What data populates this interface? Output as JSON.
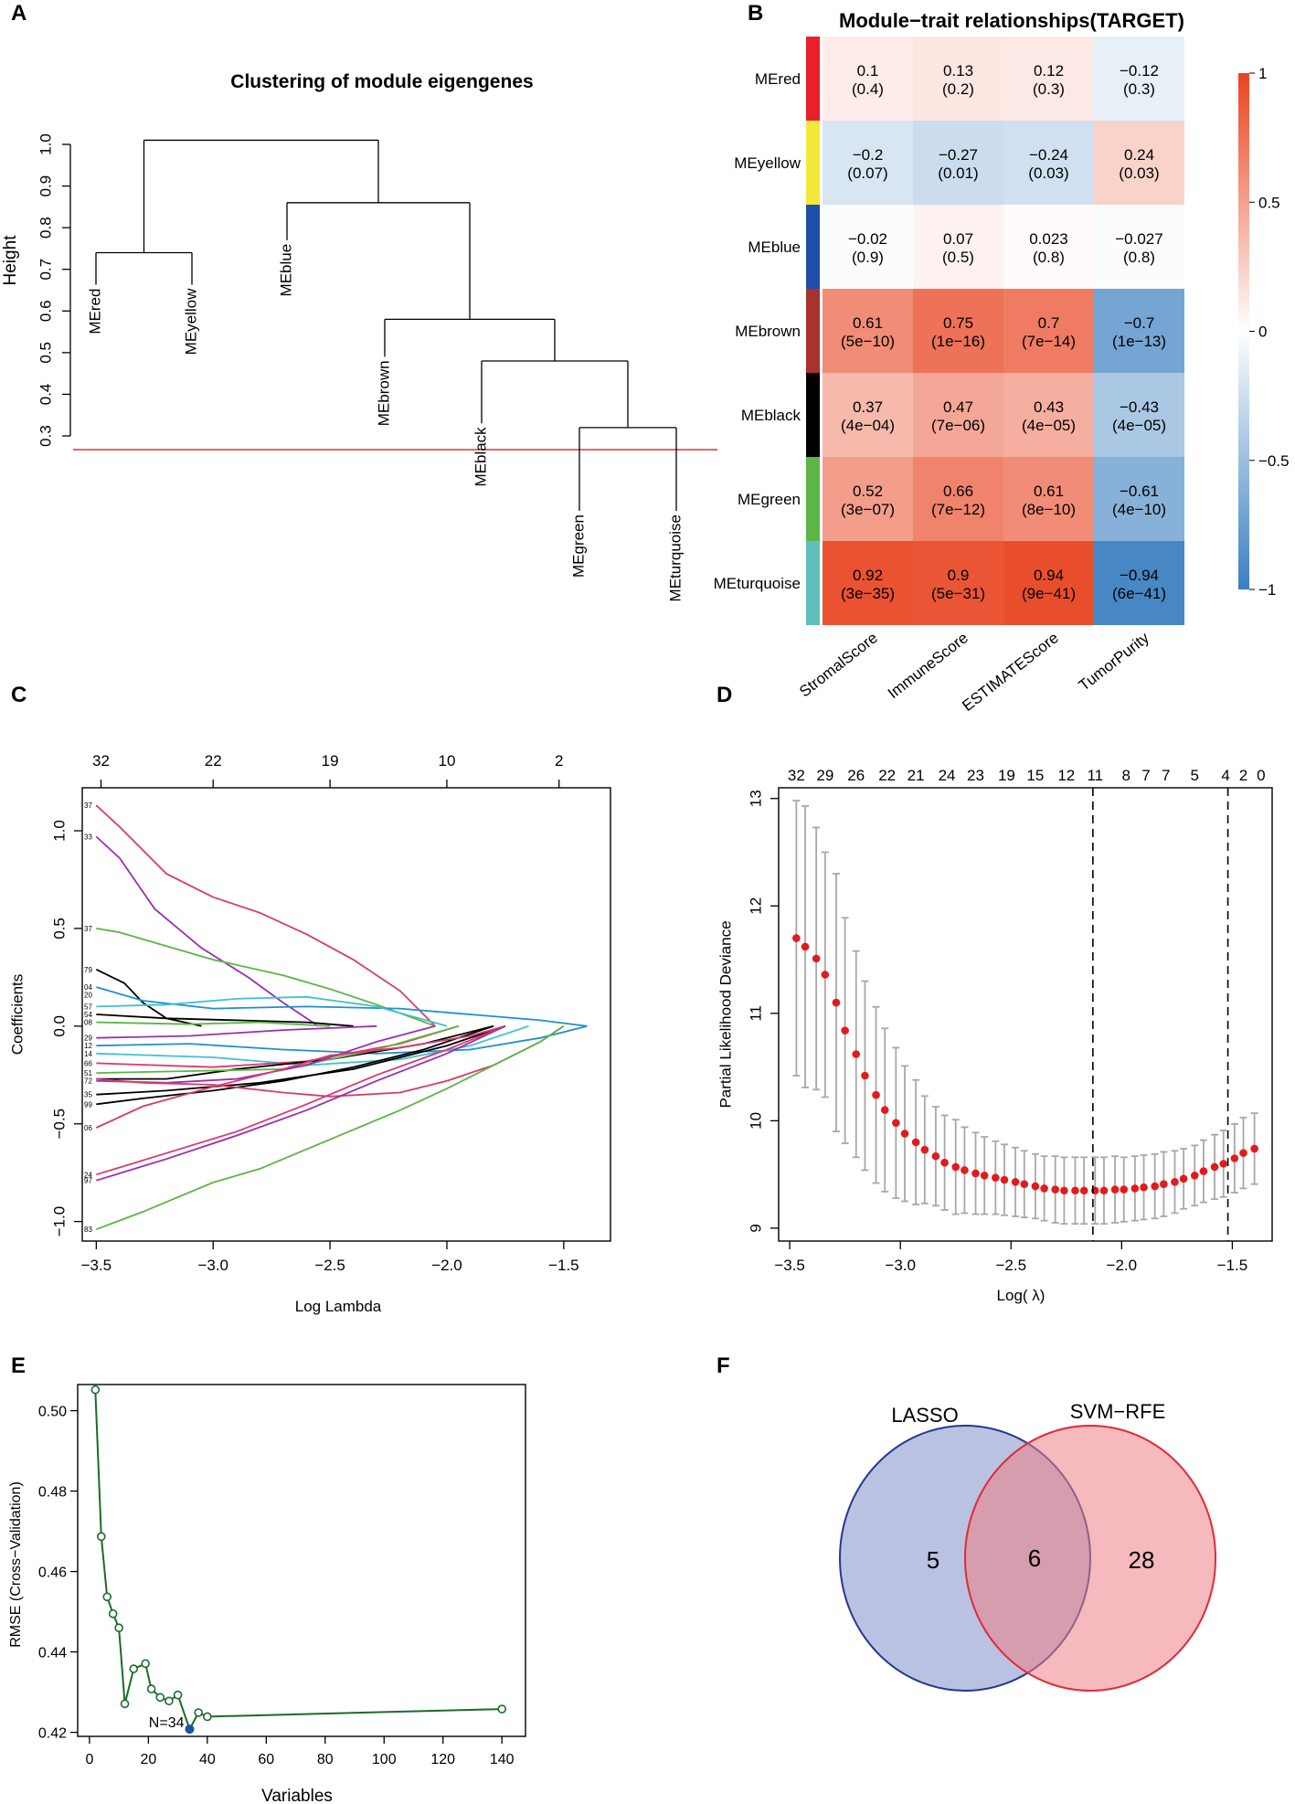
{
  "colors": {
    "axis": "#000000",
    "cutline": "#e0303a",
    "lasso_points": "#e31a1c",
    "error_bars": "#a8a8a8",
    "rfe_line": "#1b6b2a",
    "rfe_best": "#1f4fa8",
    "rfe_best_label": "#e0407a",
    "venn_lasso_fill": "#7f8fc8",
    "venn_lasso_stroke": "#26378f",
    "venn_svm_fill": "#ef7f86",
    "venn_svm_stroke": "#e02a35",
    "heat_pos": "#e8431f",
    "heat_neutral": "#ffffff",
    "heat_neg": "#3a7fc0"
  },
  "panel_labels": [
    "A",
    "B",
    "C",
    "D",
    "E",
    "F"
  ],
  "chart_data": [
    {
      "id": "A",
      "type": "dendrogram",
      "title": "Clustering of module eigengenes",
      "ylabel": "Height",
      "ylim": [
        0.27,
        1.05
      ],
      "yticks": [
        "0.3",
        "0.4",
        "0.5",
        "0.6",
        "0.7",
        "0.8",
        "0.9",
        "1.0"
      ],
      "ytick_values": [
        0.3,
        0.4,
        0.5,
        0.6,
        0.7,
        0.8,
        0.9,
        1.0
      ],
      "cut_height": 0.25,
      "leaves": [
        "MEred",
        "MEyellow",
        "MEblue",
        "MEbrown",
        "MEblack",
        "MEgreen",
        "MEturquoise"
      ],
      "merges": [
        {
          "left": "MEred",
          "right": "MEyellow",
          "height": 0.74
        },
        {
          "left": "MEgreen",
          "right": "MEturquoise",
          "height": 0.32
        },
        {
          "left": "MEblack",
          "right": "(MEgreen,MEturquoise)",
          "height": 0.48
        },
        {
          "left": "MEbrown",
          "right": "(MEblack,MEgreen,MEturquoise)",
          "height": 0.58
        },
        {
          "left": "MEblue",
          "right": "(brown cluster)",
          "height": 0.86
        },
        {
          "left": "(MEred,MEyellow)",
          "right": "(blue cluster)",
          "height": 1.01
        }
      ]
    },
    {
      "id": "B",
      "type": "heatmap",
      "title": "Module−trait relationships(TARGET)",
      "rows": [
        "MEred",
        "MEyellow",
        "MEblue",
        "MEbrown",
        "MEblack",
        "MEgreen",
        "MEturquoise"
      ],
      "row_colors": [
        "#e8202a",
        "#f2e93a",
        "#1f4fa8",
        "#a8322d",
        "#000000",
        "#5cb545",
        "#5fc0bd"
      ],
      "columns": [
        "StromalScore",
        "ImmuneScore",
        "ESTIMATEScore",
        "TumorPurity"
      ],
      "values": [
        [
          0.1,
          0.13,
          0.12,
          -0.12
        ],
        [
          -0.2,
          -0.27,
          -0.24,
          0.24
        ],
        [
          -0.02,
          0.07,
          0.023,
          -0.027
        ],
        [
          0.61,
          0.75,
          0.7,
          -0.7
        ],
        [
          0.37,
          0.47,
          0.43,
          -0.43
        ],
        [
          0.52,
          0.66,
          0.61,
          -0.61
        ],
        [
          0.92,
          0.9,
          0.94,
          -0.94
        ]
      ],
      "value_labels": [
        [
          "0.1",
          "0.13",
          "0.12",
          "−0.12"
        ],
        [
          "−0.2",
          "−0.27",
          "−0.24",
          "0.24"
        ],
        [
          "−0.02",
          "0.07",
          "0.023",
          "−0.027"
        ],
        [
          "0.61",
          "0.75",
          "0.7",
          "−0.7"
        ],
        [
          "0.37",
          "0.47",
          "0.43",
          "−0.43"
        ],
        [
          "0.52",
          "0.66",
          "0.61",
          "−0.61"
        ],
        [
          "0.92",
          "0.9",
          "0.94",
          "−0.94"
        ]
      ],
      "pvalue_labels": [
        [
          "(0.4)",
          "(0.2)",
          "(0.3)",
          "(0.3)"
        ],
        [
          "(0.07)",
          "(0.01)",
          "(0.03)",
          "(0.03)"
        ],
        [
          "(0.9)",
          "(0.5)",
          "(0.8)",
          "(0.8)"
        ],
        [
          "(5e−10)",
          "(1e−16)",
          "(7e−14)",
          "(1e−13)"
        ],
        [
          "(4e−04)",
          "(7e−06)",
          "(4e−05)",
          "(4e−05)"
        ],
        [
          "(3e−07)",
          "(7e−12)",
          "(8e−10)",
          "(4e−10)"
        ],
        [
          "(3e−35)",
          "(5e−31)",
          "(9e−41)",
          "(6e−41)"
        ]
      ],
      "colorbar_ticks": [
        "1",
        "0.5",
        "0",
        "−0.5",
        "−1"
      ],
      "colorbar_values": [
        1,
        0.5,
        0,
        -0.5,
        -1
      ],
      "zlim": [
        -1,
        1
      ]
    },
    {
      "id": "C",
      "type": "line",
      "xlabel": "Log Lambda",
      "ylabel": "Coefficients",
      "xlim": [
        -3.56,
        -1.3
      ],
      "ylim": [
        -1.1,
        1.22
      ],
      "xticks": [
        "−3.5",
        "−3.0",
        "−2.5",
        "−2.0",
        "−1.5"
      ],
      "xtick_values": [
        -3.5,
        -3.0,
        -2.5,
        -2.0,
        -1.5
      ],
      "yticks": [
        "−1.0",
        "−0.5",
        "0.0",
        "0.5",
        "1.0"
      ],
      "ytick_values": [
        -1.0,
        -0.5,
        0.0,
        0.5,
        1.0
      ],
      "top_ticks": [
        "32",
        "22",
        "19",
        "10",
        "2"
      ],
      "top_tick_values": [
        -3.48,
        -3.0,
        -2.5,
        -2.0,
        -1.52
      ],
      "left_labels": [
        {
          "text": "37",
          "y": 1.13
        },
        {
          "text": "33",
          "y": 0.97
        },
        {
          "text": "37",
          "y": 0.5
        },
        {
          "text": "79",
          "y": 0.29
        },
        {
          "text": "04",
          "y": 0.2
        },
        {
          "text": "20",
          "y": 0.16
        },
        {
          "text": "57",
          "y": 0.1
        },
        {
          "text": "54",
          "y": 0.06
        },
        {
          "text": "08",
          "y": 0.02
        },
        {
          "text": "29",
          "y": -0.06
        },
        {
          "text": "12",
          "y": -0.1
        },
        {
          "text": "14",
          "y": -0.14
        },
        {
          "text": "66",
          "y": -0.19
        },
        {
          "text": "51",
          "y": -0.24
        },
        {
          "text": "72",
          "y": -0.28
        },
        {
          "text": "35",
          "y": -0.35
        },
        {
          "text": "99",
          "y": -0.4
        },
        {
          "text": "06",
          "y": -0.52
        },
        {
          "text": "24",
          "y": -0.76
        },
        {
          "text": "97",
          "y": -0.79
        },
        {
          "text": "83",
          "y": -1.04
        }
      ],
      "series": [
        {
          "color": "#d93a6a",
          "x": [
            -3.5,
            -3.4,
            -3.2,
            -3.0,
            -2.8,
            -2.6,
            -2.4,
            -2.2,
            -2.05
          ],
          "y": [
            1.13,
            1.02,
            0.78,
            0.66,
            0.58,
            0.47,
            0.34,
            0.18,
            0.0
          ]
        },
        {
          "color": "#9b2fb0",
          "x": [
            -3.5,
            -3.4,
            -3.25,
            -3.05,
            -2.85,
            -2.7,
            -2.55
          ],
          "y": [
            0.97,
            0.86,
            0.6,
            0.4,
            0.25,
            0.12,
            0.0
          ]
        },
        {
          "color": "#5cb545",
          "x": [
            -3.5,
            -3.4,
            -3.2,
            -3.0,
            -2.7,
            -2.5,
            -2.3,
            -2.05
          ],
          "y": [
            0.5,
            0.48,
            0.41,
            0.34,
            0.26,
            0.19,
            0.11,
            0.0
          ]
        },
        {
          "color": "#000000",
          "x": [
            -3.5,
            -3.38,
            -3.3,
            -3.2,
            -3.05
          ],
          "y": [
            0.29,
            0.22,
            0.12,
            0.04,
            0.0
          ]
        },
        {
          "color": "#1f8fcf",
          "x": [
            -3.5,
            -3.3,
            -3.0,
            -2.6,
            -2.2,
            -1.9,
            -1.6,
            -1.4
          ],
          "y": [
            0.2,
            0.13,
            0.09,
            0.1,
            0.09,
            0.06,
            0.03,
            0.0
          ]
        },
        {
          "color": "#3fc1d0",
          "x": [
            -3.5,
            -3.2,
            -2.9,
            -2.6,
            -2.3,
            -2.0
          ],
          "y": [
            0.1,
            0.11,
            0.14,
            0.15,
            0.1,
            0.0
          ]
        },
        {
          "color": "#000000",
          "x": [
            -3.5,
            -3.2,
            -2.9,
            -2.6,
            -2.4
          ],
          "y": [
            0.06,
            0.04,
            0.03,
            0.02,
            0.0
          ]
        },
        {
          "color": "#5cb545",
          "x": [
            -3.5,
            -3.1,
            -2.8,
            -2.5
          ],
          "y": [
            0.02,
            0.01,
            0.02,
            0.0
          ]
        },
        {
          "color": "#9b2fb0",
          "x": [
            -3.5,
            -3.1,
            -2.7,
            -2.3
          ],
          "y": [
            -0.06,
            -0.05,
            -0.02,
            0.0
          ]
        },
        {
          "color": "#1f8fcf",
          "x": [
            -3.5,
            -3.1,
            -2.7,
            -2.3,
            -1.9,
            -1.6,
            -1.4
          ],
          "y": [
            -0.1,
            -0.09,
            -0.12,
            -0.14,
            -0.12,
            -0.06,
            0.0
          ]
        },
        {
          "color": "#3fc1d0",
          "x": [
            -3.5,
            -3.0,
            -2.6,
            -2.2,
            -1.9,
            -1.65
          ],
          "y": [
            -0.14,
            -0.16,
            -0.2,
            -0.17,
            -0.1,
            0.0
          ]
        },
        {
          "color": "#d93a6a",
          "x": [
            -3.5,
            -3.0,
            -2.6,
            -2.2,
            -1.95
          ],
          "y": [
            -0.19,
            -0.21,
            -0.18,
            -0.09,
            0.0
          ]
        },
        {
          "color": "#000000",
          "x": [
            -3.5,
            -3.2,
            -2.9,
            -2.5,
            -2.1,
            -1.8
          ],
          "y": [
            -0.27,
            -0.27,
            -0.22,
            -0.17,
            -0.09,
            0.0
          ]
        },
        {
          "color": "#5cb545",
          "x": [
            -3.5,
            -3.1,
            -2.7,
            -2.3,
            -1.95
          ],
          "y": [
            -0.24,
            -0.23,
            -0.22,
            -0.12,
            0.0
          ]
        },
        {
          "color": "#9b2fb0",
          "x": [
            -3.5,
            -3.2,
            -2.9,
            -2.6,
            -2.3,
            -2.05
          ],
          "y": [
            -0.28,
            -0.29,
            -0.27,
            -0.2,
            -0.08,
            0.0
          ]
        },
        {
          "color": "#000000",
          "x": [
            -3.5,
            -3.2,
            -2.8,
            -2.4,
            -2.0,
            -1.75
          ],
          "y": [
            -0.35,
            -0.33,
            -0.29,
            -0.22,
            -0.1,
            0.0
          ]
        },
        {
          "color": "#000000",
          "x": [
            -3.5,
            -3.3,
            -3.0,
            -2.7,
            -2.4,
            -2.1,
            -1.8
          ],
          "y": [
            -0.4,
            -0.37,
            -0.33,
            -0.28,
            -0.21,
            -0.12,
            0.0
          ]
        },
        {
          "color": "#d93a6a",
          "x": [
            -3.5,
            -3.3,
            -3.0,
            -2.7,
            -2.5,
            -2.2,
            -1.9,
            -1.75
          ],
          "y": [
            -0.52,
            -0.41,
            -0.31,
            -0.22,
            -0.15,
            -0.11,
            -0.05,
            0.0
          ]
        },
        {
          "color": "#d93a6a",
          "x": [
            -3.5,
            -3.3,
            -3.0,
            -2.7,
            -2.5,
            -2.2,
            -2.0,
            -1.8,
            -1.6,
            -1.5
          ],
          "y": [
            -0.27,
            -0.29,
            -0.3,
            -0.34,
            -0.36,
            -0.34,
            -0.28,
            -0.2,
            -0.08,
            0.0
          ]
        },
        {
          "color": "#d93a6a",
          "x": [
            -3.5,
            -3.2,
            -2.9,
            -2.6,
            -2.3,
            -2.0,
            -1.75
          ],
          "y": [
            -0.76,
            -0.65,
            -0.54,
            -0.4,
            -0.25,
            -0.12,
            0.0
          ]
        },
        {
          "color": "#9b2fb0",
          "x": [
            -3.5,
            -3.2,
            -2.9,
            -2.6,
            -2.3,
            -2.0,
            -1.75
          ],
          "y": [
            -0.79,
            -0.68,
            -0.56,
            -0.43,
            -0.28,
            -0.14,
            0.0
          ]
        },
        {
          "color": "#5cb545",
          "x": [
            -3.5,
            -3.3,
            -3.0,
            -2.8,
            -2.5,
            -2.2,
            -2.0,
            -1.8,
            -1.6,
            -1.5
          ],
          "y": [
            -1.04,
            -0.95,
            -0.8,
            -0.73,
            -0.58,
            -0.43,
            -0.32,
            -0.2,
            -0.08,
            0.0
          ]
        }
      ]
    },
    {
      "id": "D",
      "type": "scatter",
      "xlabel": "Log( λ)",
      "ylabel": "Partial Likelihood Deviance",
      "xlim": [
        -3.55,
        -1.32
      ],
      "ylim": [
        8.88,
        13.1
      ],
      "xticks": [
        "−3.5",
        "−3.0",
        "−2.5",
        "−2.0",
        "−1.5"
      ],
      "xtick_values": [
        -3.5,
        -3.0,
        -2.5,
        -2.0,
        -1.5
      ],
      "yticks": [
        "9",
        "10",
        "11",
        "12",
        "13"
      ],
      "ytick_values": [
        9,
        10,
        11,
        12,
        13
      ],
      "top_ticks": [
        "32",
        "29",
        "26",
        "22",
        "21",
        "24",
        "23",
        "19",
        "15",
        "12",
        "11",
        "8",
        "7",
        "7",
        "5",
        "4",
        "2",
        "0"
      ],
      "top_tick_values": [
        -3.47,
        -3.34,
        -3.2,
        -3.06,
        -2.93,
        -2.79,
        -2.66,
        -2.52,
        -2.39,
        -2.25,
        -2.12,
        -1.98,
        -1.89,
        -1.8,
        -1.67,
        -1.53,
        -1.45,
        -1.37
      ],
      "vlines": [
        -2.13,
        -1.52
      ],
      "x": [
        -3.47,
        -3.43,
        -3.38,
        -3.34,
        -3.29,
        -3.25,
        -3.2,
        -3.16,
        -3.11,
        -3.07,
        -3.02,
        -2.98,
        -2.93,
        -2.89,
        -2.84,
        -2.8,
        -2.75,
        -2.71,
        -2.66,
        -2.62,
        -2.57,
        -2.53,
        -2.48,
        -2.44,
        -2.39,
        -2.35,
        -2.3,
        -2.26,
        -2.21,
        -2.17,
        -2.12,
        -2.08,
        -2.03,
        -1.99,
        -1.94,
        -1.9,
        -1.85,
        -1.81,
        -1.76,
        -1.72,
        -1.67,
        -1.63,
        -1.58,
        -1.54,
        -1.49,
        -1.45,
        -1.4
      ],
      "y": [
        11.7,
        11.62,
        11.51,
        11.36,
        11.1,
        10.84,
        10.62,
        10.42,
        10.24,
        10.1,
        9.98,
        9.88,
        9.8,
        9.73,
        9.67,
        9.61,
        9.57,
        9.54,
        9.51,
        9.49,
        9.47,
        9.45,
        9.43,
        9.41,
        9.39,
        9.37,
        9.36,
        9.35,
        9.35,
        9.35,
        9.35,
        9.35,
        9.36,
        9.36,
        9.37,
        9.38,
        9.39,
        9.41,
        9.43,
        9.46,
        9.49,
        9.53,
        9.57,
        9.6,
        9.65,
        9.7,
        9.74
      ],
      "err": [
        1.28,
        1.31,
        1.22,
        1.14,
        1.2,
        1.05,
        0.96,
        0.88,
        0.82,
        0.76,
        0.7,
        0.63,
        0.58,
        0.5,
        0.46,
        0.44,
        0.44,
        0.4,
        0.38,
        0.36,
        0.34,
        0.33,
        0.32,
        0.31,
        0.3,
        0.3,
        0.31,
        0.31,
        0.31,
        0.31,
        0.31,
        0.31,
        0.31,
        0.3,
        0.3,
        0.3,
        0.3,
        0.3,
        0.29,
        0.28,
        0.28,
        0.29,
        0.3,
        0.31,
        0.32,
        0.33,
        0.33
      ]
    },
    {
      "id": "E",
      "type": "line",
      "xlabel": "Variables",
      "ylabel": "RMSE (Cross−Validation)",
      "xlim": [
        -4,
        148
      ],
      "ylim": [
        0.419,
        0.5065
      ],
      "xticks": [
        "0",
        "20",
        "40",
        "60",
        "80",
        "100",
        "120",
        "140"
      ],
      "xtick_values": [
        0,
        20,
        40,
        60,
        80,
        100,
        120,
        140
      ],
      "yticks": [
        "0.42",
        "0.44",
        "0.46",
        "0.48",
        "0.50"
      ],
      "ytick_values": [
        0.42,
        0.44,
        0.46,
        0.48,
        0.5
      ],
      "x": [
        2,
        4,
        6,
        8,
        10,
        12,
        15,
        19,
        21,
        24,
        27,
        30,
        34,
        37,
        40,
        140
      ],
      "y": [
        0.5052,
        0.4687,
        0.4537,
        0.4495,
        0.446,
        0.4271,
        0.4358,
        0.4371,
        0.4308,
        0.4287,
        0.4278,
        0.4293,
        0.4208,
        0.4249,
        0.4239,
        0.4258
      ],
      "best": {
        "x": 34,
        "y": 0.4208,
        "label": "N=34"
      }
    },
    {
      "id": "F",
      "type": "venn",
      "sets": [
        "LASSO",
        "SVM−RFE"
      ],
      "only_lasso": "5",
      "intersection": "6",
      "only_svm": "28"
    }
  ]
}
